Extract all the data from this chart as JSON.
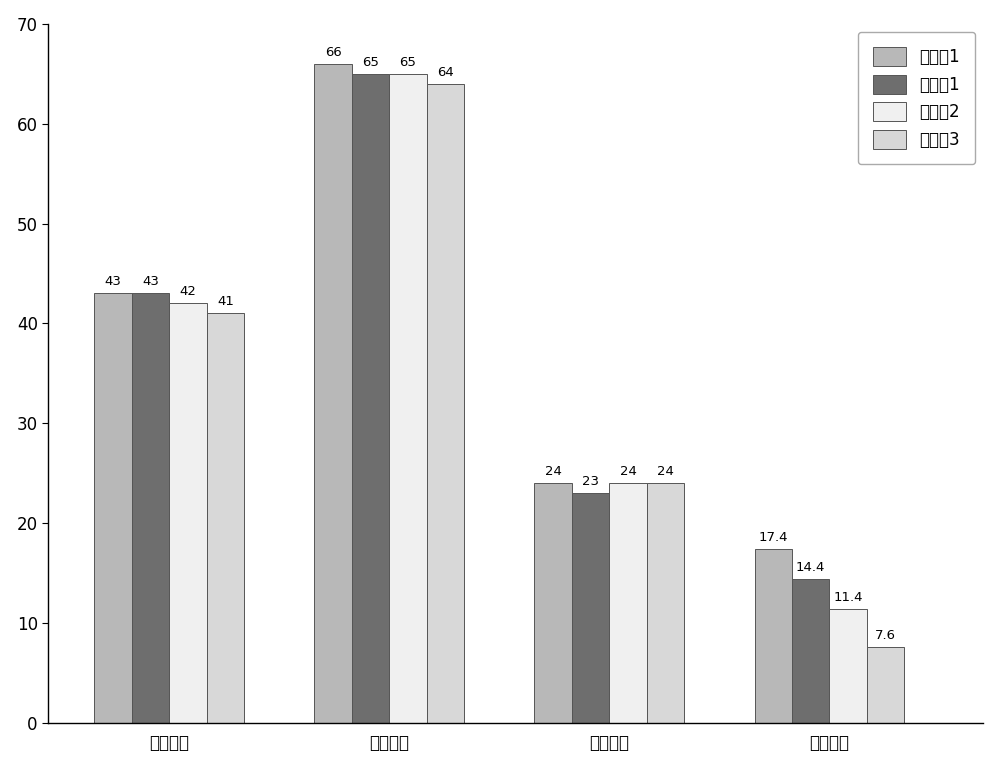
{
  "categories": [
    "拉伸强度",
    "弯曲强度",
    "缺口冲击",
    "燕融指数"
  ],
  "series": [
    {
      "label": "对照例1",
      "color": "#b8b8b8",
      "values": [
        43,
        66,
        24,
        17.4
      ]
    },
    {
      "label": "实施例1",
      "color": "#6e6e6e",
      "values": [
        43,
        65,
        23,
        14.4
      ]
    },
    {
      "label": "实施例2",
      "color": "#f0f0f0",
      "values": [
        42,
        65,
        24,
        11.4
      ]
    },
    {
      "label": "实施例3",
      "color": "#d8d8d8",
      "values": [
        41,
        64,
        24,
        7.6
      ]
    }
  ],
  "ylim": [
    0,
    70
  ],
  "yticks": [
    0,
    10,
    20,
    30,
    40,
    50,
    60,
    70
  ],
  "bar_width": 0.17,
  "value_fontsize": 9.5,
  "tick_fontsize": 12,
  "legend_fontsize": 12,
  "background_color": "#ffffff",
  "edge_color": "#555555"
}
